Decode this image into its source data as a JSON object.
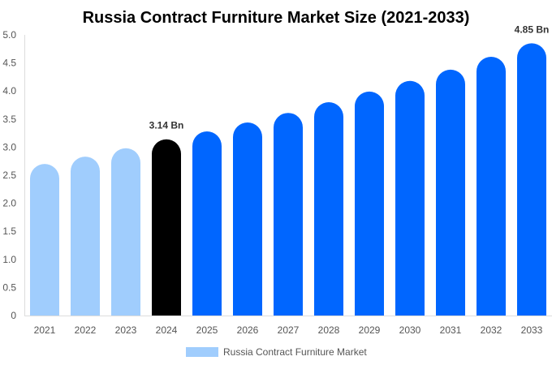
{
  "chart_data": {
    "type": "bar",
    "title": "Russia Contract Furniture Market Size (2021-2033)",
    "categories": [
      "2021",
      "2022",
      "2023",
      "2024",
      "2025",
      "2026",
      "2027",
      "2028",
      "2029",
      "2030",
      "2031",
      "2032",
      "2033"
    ],
    "series": [
      {
        "name": "Russia Contract Furniture Market",
        "values": [
          2.7,
          2.83,
          2.98,
          3.14,
          3.28,
          3.44,
          3.61,
          3.8,
          3.99,
          4.18,
          4.38,
          4.61,
          4.85
        ]
      }
    ],
    "data_labels": [
      {
        "category": "2024",
        "text": "3.14 Bn"
      },
      {
        "category": "2033",
        "text": "4.85 Bn"
      }
    ],
    "yticks": [
      "0",
      "0.5",
      "1.0",
      "1.5",
      "2.0",
      "2.5",
      "3.0",
      "3.5",
      "4.0",
      "4.5",
      "5.0"
    ],
    "ylim": [
      0,
      5
    ],
    "grid": false,
    "legend_position": "bottom",
    "colors": {
      "historical": "#a0cdfd",
      "base_year": "#000000",
      "forecast": "#0066ff",
      "legend": "#a0cdfd"
    }
  }
}
